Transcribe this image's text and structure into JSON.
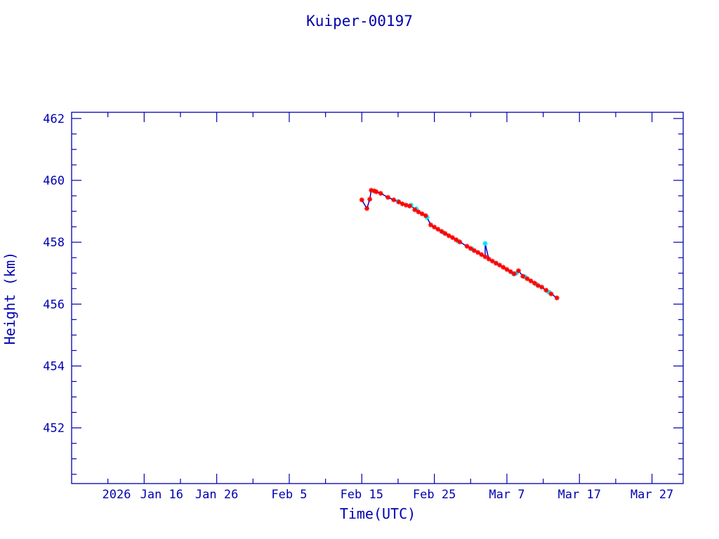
{
  "chart_data": {
    "type": "scatter",
    "title": "Kuiper-00197",
    "xlabel": "Time(UTC)",
    "ylabel": "Height (km)",
    "x_units": "day of year 2026",
    "xlim": [
      6,
      90.3
    ],
    "ylim": [
      450.2,
      462.2
    ],
    "year_label": "2026",
    "x_ticks": [
      {
        "value": 16,
        "label": "Jan 16"
      },
      {
        "value": 26,
        "label": "Jan 26"
      },
      {
        "value": 36,
        "label": "Feb  5"
      },
      {
        "value": 46,
        "label": "Feb 15"
      },
      {
        "value": 56,
        "label": "Feb 25"
      },
      {
        "value": 66,
        "label": "Mar  7"
      },
      {
        "value": 76,
        "label": "Mar 17"
      },
      {
        "value": 86,
        "label": "Mar 27"
      }
    ],
    "y_ticks": [
      452,
      454,
      456,
      458,
      460,
      462
    ],
    "colors": {
      "axis": "#0000b0",
      "line": "#0000c8",
      "red": "#ff0000",
      "cyan": "#00e5ee"
    },
    "series": [
      {
        "name": "red",
        "marker": "asterisk",
        "color": "#ff0000",
        "x": [
          46.0,
          46.7,
          47.1,
          47.3,
          47.7,
          48.0,
          48.6,
          49.6,
          50.4,
          51.1,
          51.6,
          52.1,
          52.6,
          53.3,
          53.8,
          54.3,
          54.8,
          55.5,
          56.0,
          56.5,
          57.0,
          57.5,
          58.0,
          58.5,
          59.0,
          59.5,
          60.5,
          61.0,
          61.5,
          62.0,
          62.5,
          63.0,
          63.5,
          64.0,
          64.5,
          65.0,
          65.5,
          66.0,
          66.5,
          67.0,
          67.6,
          68.2,
          68.8,
          69.3,
          69.8,
          70.3,
          70.8,
          71.4,
          72.1,
          72.9
        ],
        "y": [
          459.37,
          459.09,
          459.39,
          459.68,
          459.66,
          459.63,
          459.58,
          459.45,
          459.37,
          459.3,
          459.24,
          459.2,
          459.17,
          459.05,
          458.98,
          458.92,
          458.86,
          458.56,
          458.49,
          458.42,
          458.35,
          458.28,
          458.21,
          458.15,
          458.08,
          458.01,
          457.87,
          457.8,
          457.73,
          457.67,
          457.6,
          457.53,
          457.46,
          457.39,
          457.32,
          457.26,
          457.19,
          457.12,
          457.05,
          456.98,
          457.08,
          456.9,
          456.82,
          456.75,
          456.68,
          456.6,
          456.55,
          456.45,
          456.33,
          456.2
        ]
      },
      {
        "name": "cyan",
        "marker": "asterisk",
        "color": "#00e5ee",
        "x": [
          51.0,
          52.8,
          53.5,
          55.0,
          57.2,
          59.3,
          61.2,
          63.0,
          64.5,
          66.9,
          67.3,
          68.5,
          70.0,
          71.8
        ],
        "y": [
          459.32,
          459.2,
          459.08,
          458.8,
          458.32,
          458.03,
          457.78,
          457.96,
          457.33,
          456.98,
          457.0,
          456.88,
          456.65,
          456.38
        ]
      }
    ]
  }
}
